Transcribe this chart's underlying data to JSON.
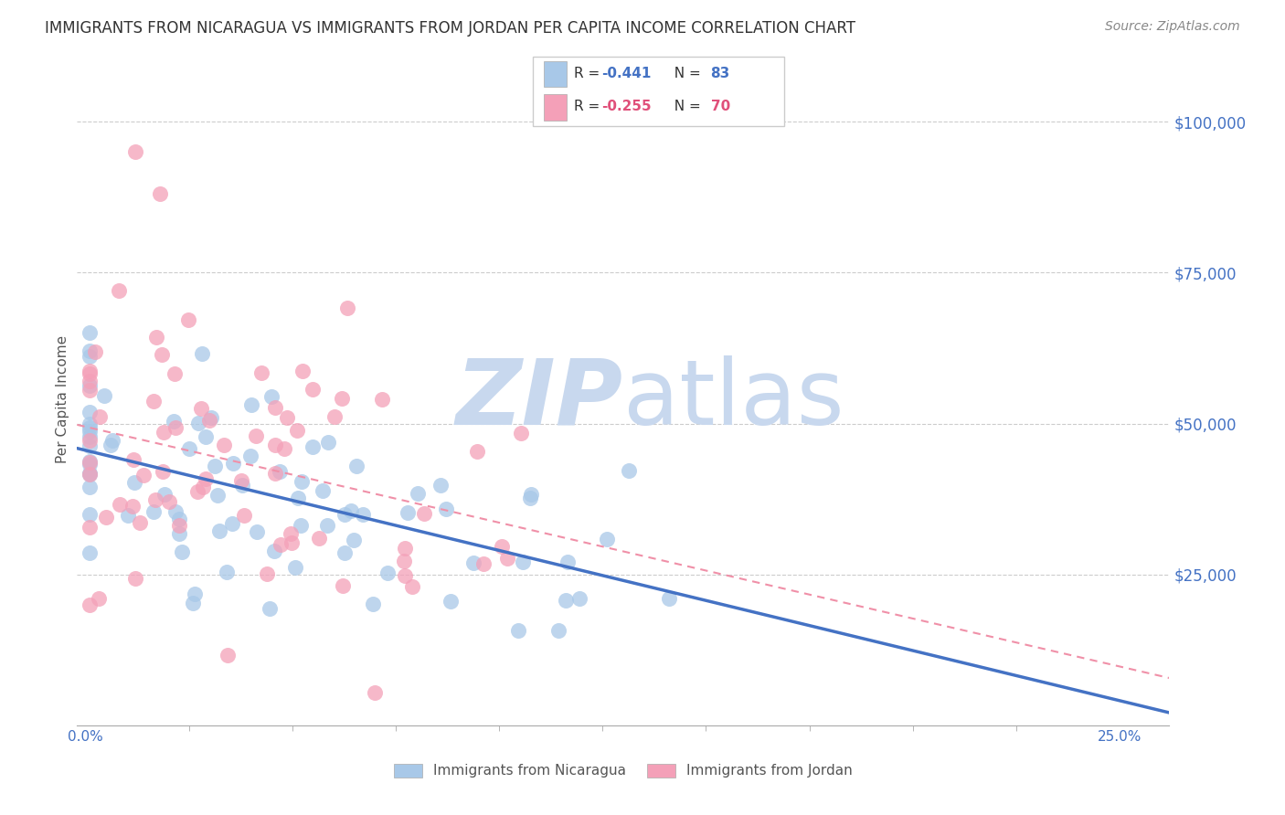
{
  "title": "IMMIGRANTS FROM NICARAGUA VS IMMIGRANTS FROM JORDAN PER CAPITA INCOME CORRELATION CHART",
  "source": "Source: ZipAtlas.com",
  "ylabel": "Per Capita Income",
  "ytick_labels": [
    "$25,000",
    "$50,000",
    "$75,000",
    "$100,000"
  ],
  "ytick_vals": [
    25000,
    50000,
    75000,
    100000
  ],
  "xlim": [
    -0.002,
    0.262
  ],
  "ylim": [
    0,
    108000
  ],
  "legend_label1": "Immigrants from Nicaragua",
  "legend_label2": "Immigrants from Jordan",
  "color_blue": "#a8c8e8",
  "color_pink": "#f4a0b8",
  "color_blue_dark": "#4472C4",
  "color_pink_dark": "#e06080",
  "color_blue_text": "#4472C4",
  "color_pink_text": "#E0507A",
  "trendline_blue": "#4472C4",
  "trendline_pink": "#f090a8",
  "watermark_zip_color": "#c8d8ee",
  "watermark_atlas_color": "#c8d8ee",
  "R1": -0.441,
  "N1": 83,
  "R2": -0.255,
  "N2": 70,
  "seed": 42
}
